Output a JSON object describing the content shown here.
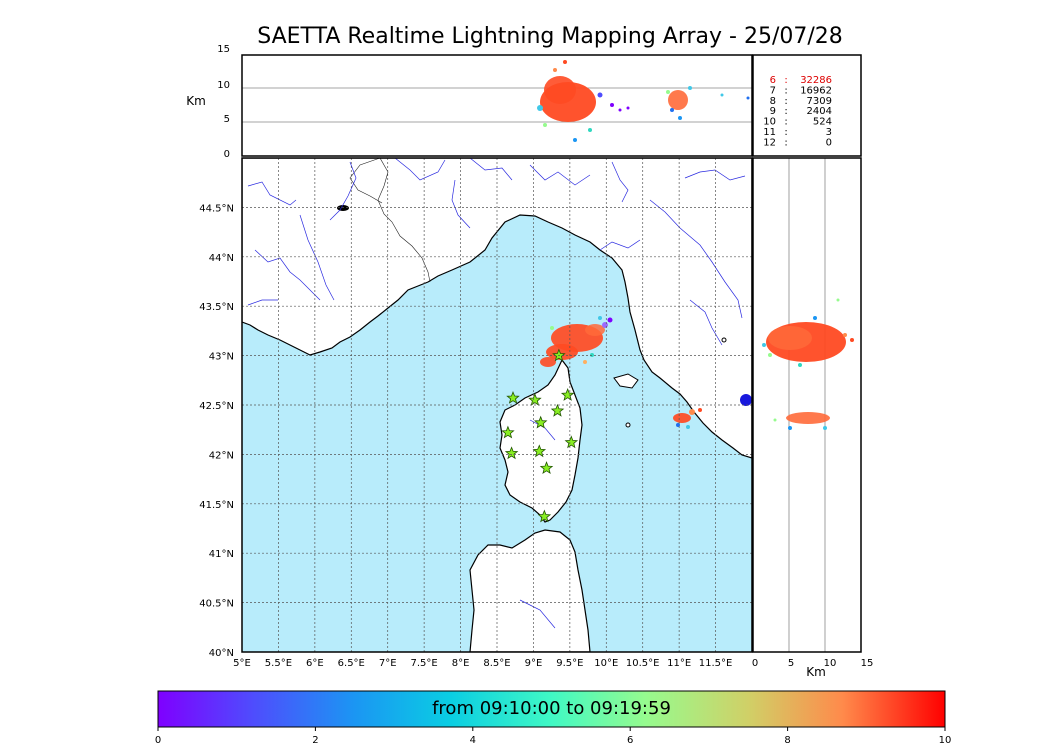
{
  "title": "SAETTA Realtime Lightning Mapping Array - 25/07/28",
  "km_label_top": "Km",
  "km_label_side": "Km",
  "height_ticks": [
    "15",
    "10",
    "5",
    "0"
  ],
  "side_ticks": [
    "0",
    "5",
    "10",
    "15"
  ],
  "lon_ticks": [
    "5°E",
    "5.5°E",
    "6°E",
    "6.5°E",
    "7°E",
    "7.5°E",
    "8°E",
    "8.5°E",
    "9°E",
    "9.5°E",
    "10°E",
    "10.5°E",
    "11°E",
    "11.5°E"
  ],
  "lat_ticks": [
    "44.5°N",
    "44°N",
    "43.5°N",
    "43°N",
    "42.5°N",
    "42°N",
    "41.5°N",
    "41°N",
    "40.5°N",
    "40°N"
  ],
  "station_stats": [
    {
      "stations": "6",
      "count": "32286",
      "color": "#dd0000"
    },
    {
      "stations": "7",
      "count": "16962",
      "color": "#000000"
    },
    {
      "stations": "8",
      "count": "7309",
      "color": "#000000"
    },
    {
      "stations": "9",
      "count": "2404",
      "color": "#000000"
    },
    {
      "stations": "10",
      "count": "524",
      "color": "#000000"
    },
    {
      "stations": "11",
      "count": "3",
      "color": "#000000"
    },
    {
      "stations": "12",
      "count": "0",
      "color": "#000000"
    }
  ],
  "colorbar": {
    "label": "from 09:10:00 to 09:19:59",
    "ticks": [
      "0",
      "2",
      "4",
      "6",
      "8",
      "10"
    ],
    "range": [
      0,
      10
    ]
  },
  "colors": {
    "sea": "#b8ecfb",
    "rivers": "#2a2ae0",
    "stations": "#88ee22",
    "dominant_strike": "#ff4a22"
  },
  "map_extent": {
    "lon": [
      5,
      12
    ],
    "lat": [
      40,
      45
    ]
  },
  "lightning_clusters": [
    {
      "name": "ligurian-sea-cluster",
      "lon": 9.55,
      "lat": 43.18,
      "alt_km_range": [
        4,
        10
      ]
    },
    {
      "name": "tuscany-coast-cluster",
      "lon": 11.05,
      "lat": 42.4,
      "alt_km_range": [
        3,
        10
      ]
    }
  ],
  "stations": [
    {
      "lon": 8.72,
      "lat": 42.57
    },
    {
      "lon": 9.02,
      "lat": 42.55
    },
    {
      "lon": 9.47,
      "lat": 42.6
    },
    {
      "lon": 9.33,
      "lat": 42.44
    },
    {
      "lon": 9.1,
      "lat": 42.32
    },
    {
      "lon": 8.65,
      "lat": 42.22
    },
    {
      "lon": 9.52,
      "lat": 42.12
    },
    {
      "lon": 8.7,
      "lat": 42.01
    },
    {
      "lon": 9.08,
      "lat": 42.03
    },
    {
      "lon": 9.18,
      "lat": 41.86
    },
    {
      "lon": 9.15,
      "lat": 41.37
    },
    {
      "lon": 9.35,
      "lat": 43.0
    }
  ]
}
